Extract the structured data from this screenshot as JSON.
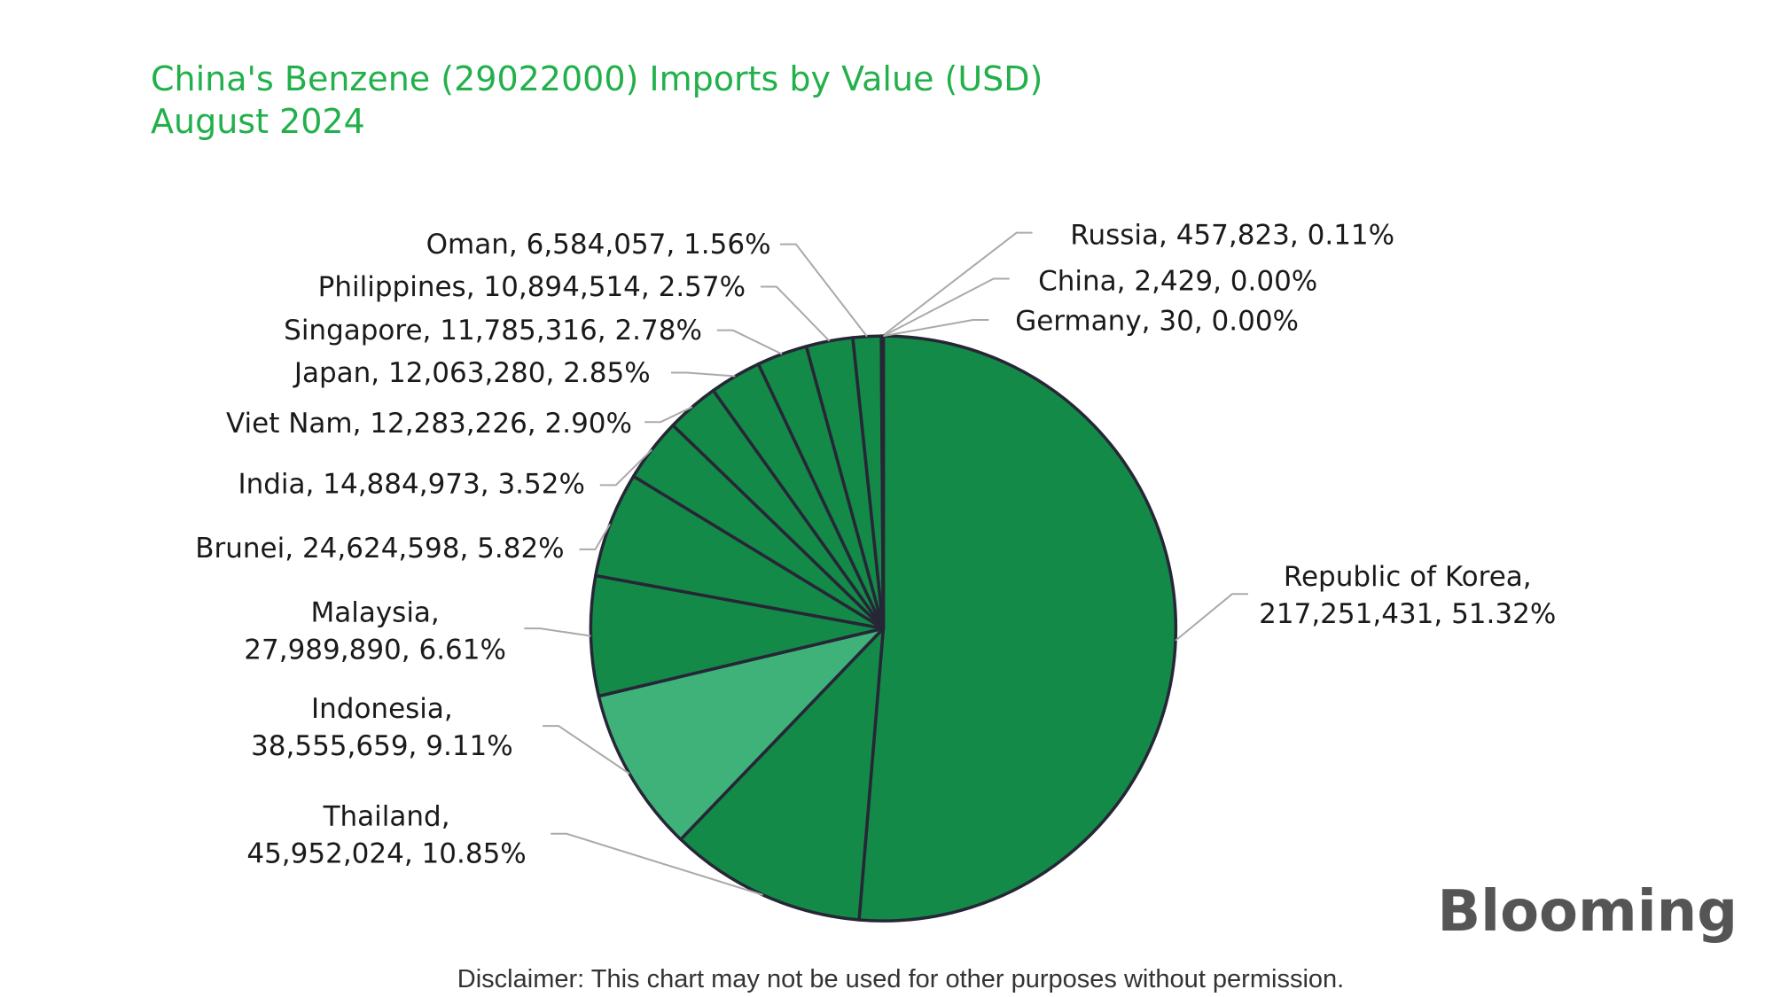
{
  "header": {
    "title": [
      "China's Benzene (29022000) Imports by Value (USD)",
      "August 2024"
    ],
    "brand": "Blooming",
    "disclaimer": "Disclaimer: This chart may not be used for other purposes without permission."
  },
  "chart_data": {
    "type": "pie",
    "labels": [
      [
        "Republic of Korea,",
        "217,251,431, 51.32%"
      ],
      [
        "Thailand,",
        "45,952,024, 10.85%"
      ],
      [
        "Indonesia,",
        "38,555,659, 9.11%"
      ],
      [
        "Malaysia,",
        "27,989,890, 6.61%"
      ],
      [
        "Brunei, 24,624,598, 5.82%"
      ],
      [
        "India, 14,884,973, 3.52%"
      ],
      [
        "Viet Nam, 12,283,226, 2.90%"
      ],
      [
        "Japan, 12,063,280, 2.85%"
      ],
      [
        "Singapore, 11,785,316, 2.78%"
      ],
      [
        "Philippines, 10,894,514, 2.57%"
      ],
      [
        "Oman, 6,584,057, 1.56%"
      ],
      [
        "Russia, 457,823, 0.11%"
      ],
      [
        "China, 2,429, 0.00%"
      ],
      [
        "Germany, 30, 0.00%"
      ]
    ],
    "values": [
      217251431,
      45952024,
      38555659,
      27989890,
      24624598,
      14884973,
      12283226,
      12063280,
      11785316,
      10894514,
      6584057,
      457823,
      2429,
      30
    ],
    "colors": [
      "#138a47",
      "#138a47",
      "#3fb27a",
      "#138a47",
      "#138a47",
      "#138a47",
      "#138a47",
      "#138a47",
      "#138a47",
      "#138a47",
      "#138a47",
      "#138a47",
      "#138a47",
      "#138a47"
    ]
  }
}
